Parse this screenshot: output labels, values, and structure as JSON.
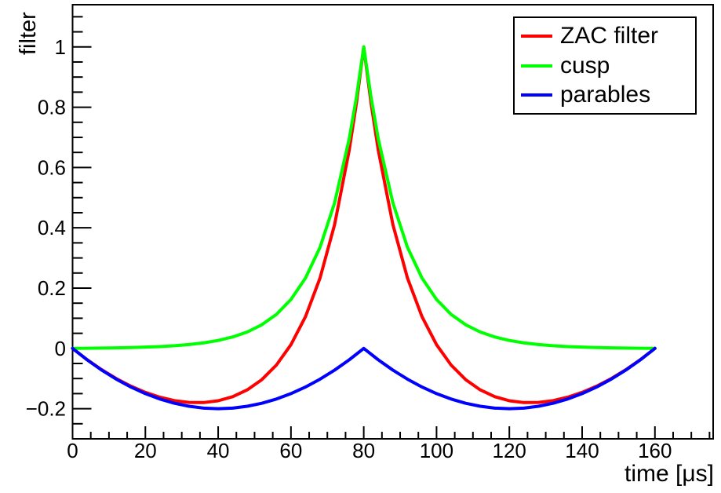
{
  "canvas": {
    "background": "#ffffff"
  },
  "chart_data": {
    "type": "line",
    "title": "",
    "xlabel": "time [μs]",
    "ylabel": "filter",
    "xlim": [
      0,
      176
    ],
    "ylim": [
      -0.3,
      1.14
    ],
    "grid": false,
    "axis_color": "#000000",
    "x_ticks": {
      "major": [
        0,
        20,
        40,
        60,
        80,
        100,
        120,
        140,
        160
      ],
      "labels": [
        "0",
        "20",
        "40",
        "60",
        "80",
        "100",
        "120",
        "140",
        "160"
      ],
      "minor_step": 5
    },
    "y_ticks": {
      "major": [
        -0.2,
        0,
        0.2,
        0.4,
        0.6,
        0.8,
        1
      ],
      "labels": [
        "−0.2",
        "0",
        "0.2",
        "0.4",
        "0.6",
        "0.8",
        "1"
      ],
      "minor_step": 0.05
    },
    "legend": {
      "position": "top-right",
      "border_color": "#000000",
      "background": "#ffffff"
    },
    "series": [
      {
        "name": "ZAC filter",
        "color": "#ff0000",
        "points": [
          [
            0,
            0
          ],
          [
            4,
            -0.0375
          ],
          [
            8,
            -0.0709
          ],
          [
            12,
            -0.1002
          ],
          [
            16,
            -0.1252
          ],
          [
            20,
            -0.1458
          ],
          [
            24,
            -0.1619
          ],
          [
            28,
            -0.1732
          ],
          [
            32,
            -0.1793
          ],
          [
            36,
            -0.1797
          ],
          [
            40,
            -0.1737
          ],
          [
            44,
            -0.1601
          ],
          [
            48,
            -0.1375
          ],
          [
            52,
            -0.1036
          ],
          [
            56,
            -0.0552
          ],
          [
            60,
            0.0123
          ],
          [
            64,
            0.1054
          ],
          [
            68,
            0.2338
          ],
          [
            72,
            0.4111
          ],
          [
            76,
            0.6569
          ],
          [
            78,
            0.8142
          ],
          [
            80,
            1
          ],
          [
            82,
            0.8142
          ],
          [
            84,
            0.6569
          ],
          [
            88,
            0.4111
          ],
          [
            92,
            0.2338
          ],
          [
            96,
            0.1054
          ],
          [
            100,
            0.0123
          ],
          [
            104,
            -0.0552
          ],
          [
            108,
            -0.1036
          ],
          [
            112,
            -0.1375
          ],
          [
            116,
            -0.1601
          ],
          [
            120,
            -0.1737
          ],
          [
            124,
            -0.1797
          ],
          [
            128,
            -0.1793
          ],
          [
            132,
            -0.1732
          ],
          [
            136,
            -0.1619
          ],
          [
            140,
            -0.1458
          ],
          [
            144,
            -0.1252
          ],
          [
            148,
            -0.1002
          ],
          [
            152,
            -0.0709
          ],
          [
            156,
            -0.0375
          ],
          [
            160,
            0
          ]
        ]
      },
      {
        "name": "cusp",
        "color": "#00ff00",
        "points": [
          [
            0,
            0
          ],
          [
            4,
            0.0005
          ],
          [
            8,
            0.0011
          ],
          [
            12,
            0.0018
          ],
          [
            16,
            0.0028
          ],
          [
            20,
            0.0042
          ],
          [
            24,
            0.0061
          ],
          [
            28,
            0.0088
          ],
          [
            32,
            0.0127
          ],
          [
            36,
            0.0183
          ],
          [
            40,
            0.0263
          ],
          [
            44,
            0.0379
          ],
          [
            48,
            0.0545
          ],
          [
            52,
            0.0784
          ],
          [
            56,
            0.1128
          ],
          [
            60,
            0.1623
          ],
          [
            64,
            0.2334
          ],
          [
            68,
            0.3358
          ],
          [
            72,
            0.4831
          ],
          [
            76,
            0.6949
          ],
          [
            78,
            0.8337
          ],
          [
            80,
            1
          ],
          [
            82,
            0.8337
          ],
          [
            84,
            0.6949
          ],
          [
            88,
            0.4831
          ],
          [
            92,
            0.3358
          ],
          [
            96,
            0.2334
          ],
          [
            100,
            0.1623
          ],
          [
            104,
            0.1128
          ],
          [
            108,
            0.0784
          ],
          [
            112,
            0.0545
          ],
          [
            116,
            0.0379
          ],
          [
            120,
            0.0263
          ],
          [
            124,
            0.0183
          ],
          [
            128,
            0.0127
          ],
          [
            132,
            0.0088
          ],
          [
            136,
            0.0061
          ],
          [
            140,
            0.0042
          ],
          [
            144,
            0.0028
          ],
          [
            148,
            0.0018
          ],
          [
            152,
            0.0011
          ],
          [
            156,
            0.0005
          ],
          [
            160,
            0
          ]
        ]
      },
      {
        "name": "parables",
        "color": "#0000ff",
        "points": [
          [
            0,
            0
          ],
          [
            4,
            -0.038
          ],
          [
            8,
            -0.072
          ],
          [
            12,
            -0.102
          ],
          [
            16,
            -0.128
          ],
          [
            20,
            -0.15
          ],
          [
            24,
            -0.168
          ],
          [
            28,
            -0.182
          ],
          [
            32,
            -0.192
          ],
          [
            36,
            -0.198
          ],
          [
            40,
            -0.2
          ],
          [
            44,
            -0.198
          ],
          [
            48,
            -0.192
          ],
          [
            52,
            -0.182
          ],
          [
            56,
            -0.168
          ],
          [
            60,
            -0.15
          ],
          [
            64,
            -0.128
          ],
          [
            68,
            -0.102
          ],
          [
            72,
            -0.072
          ],
          [
            76,
            -0.038
          ],
          [
            80,
            0
          ],
          [
            84,
            -0.038
          ],
          [
            88,
            -0.072
          ],
          [
            92,
            -0.102
          ],
          [
            96,
            -0.128
          ],
          [
            100,
            -0.15
          ],
          [
            104,
            -0.168
          ],
          [
            108,
            -0.182
          ],
          [
            112,
            -0.192
          ],
          [
            116,
            -0.198
          ],
          [
            120,
            -0.2
          ],
          [
            124,
            -0.198
          ],
          [
            128,
            -0.192
          ],
          [
            132,
            -0.182
          ],
          [
            136,
            -0.168
          ],
          [
            140,
            -0.15
          ],
          [
            144,
            -0.128
          ],
          [
            148,
            -0.102
          ],
          [
            152,
            -0.072
          ],
          [
            156,
            -0.038
          ],
          [
            160,
            0
          ]
        ]
      }
    ]
  }
}
